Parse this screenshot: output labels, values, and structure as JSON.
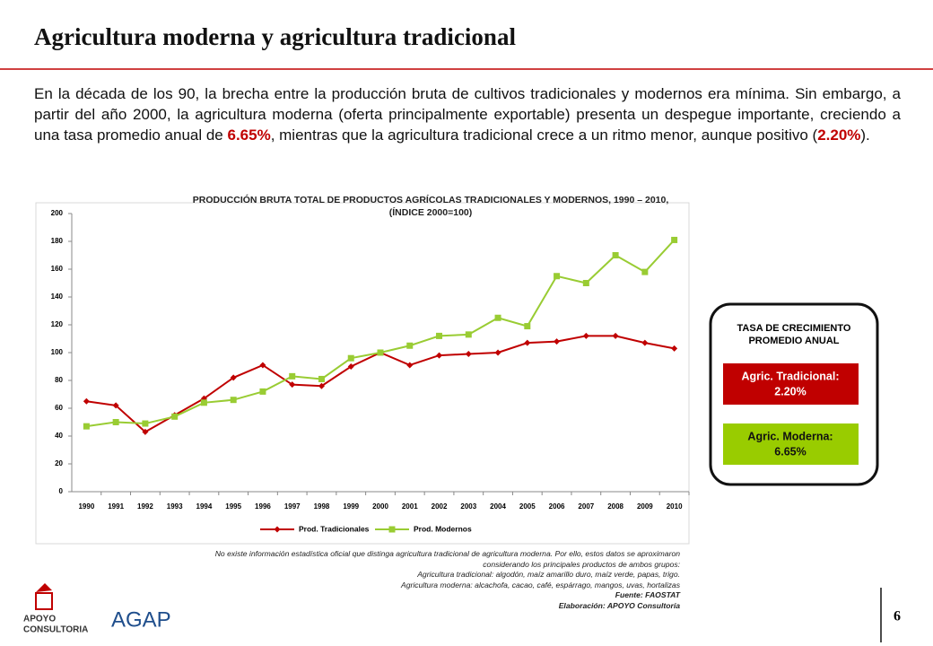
{
  "header": {
    "title": "Agricultura moderna y agricultura tradicional"
  },
  "paragraph": [
    "En la década de los 90, la brecha entre la producción bruta de cultivos tradicionales y modernos era mínima. Sin embargo, a partir del año 2000, la agricultura moderna (oferta principalmente exportable) presenta un despegue importante, creciendo a una tasa promedio anual de ",
    "6.65%",
    ", mientras que la agricultura tradicional crece a un ritmo menor, aunque positivo (",
    "2.20%",
    ")."
  ],
  "chart_data": {
    "type": "line",
    "title": "PRODUCCIÓN BRUTA TOTAL DE PRODUCTOS AGRÍCOLAS TRADICIONALES Y MODERNOS, 1990 – 2010,",
    "subtitle": "(ÍNDICE 2000=100)",
    "categories": [
      "1990",
      "1991",
      "1992",
      "1993",
      "1994",
      "1995",
      "1996",
      "1997",
      "1998",
      "1999",
      "2000",
      "2001",
      "2002",
      "2003",
      "2004",
      "2005",
      "2006",
      "2007",
      "2008",
      "2009",
      "2010"
    ],
    "series": [
      {
        "name": "Prod. Tradicionales",
        "color": "#c00000",
        "marker": "diamond",
        "values": [
          65,
          62,
          43,
          55,
          67,
          82,
          91,
          77,
          76,
          90,
          100,
          91,
          98,
          99,
          100,
          107,
          108,
          112,
          112,
          107,
          103
        ]
      },
      {
        "name": "Prod. Modernos",
        "color": "#99cc33",
        "marker": "square",
        "values": [
          47,
          50,
          49,
          54,
          64,
          66,
          72,
          83,
          81,
          96,
          100,
          105,
          112,
          113,
          125,
          119,
          155,
          150,
          170,
          158,
          181
        ]
      }
    ],
    "ylim": [
      0,
      200
    ],
    "yticks": [
      0,
      20,
      40,
      60,
      80,
      100,
      120,
      140,
      160,
      180,
      200
    ],
    "grid": false,
    "legend": "bottom"
  },
  "sidebar": {
    "title": "TASA DE CRECIMIENTO PROMEDIO ANUAL",
    "boxes": [
      {
        "label": "Agric. Tradicional:",
        "value": "2.20%",
        "color": "#c00000"
      },
      {
        "label": "Agric. Moderna:",
        "value": "6.65%",
        "color": "#99cc00"
      }
    ]
  },
  "notes": [
    "No existe información estadística oficial que distinga agricultura tradicional de agricultura moderna. Por ello, estos datos se aproximaron",
    "considerando los principales productos de ambos grupos:",
    "Agricultura tradicional: algodón, maíz amarillo duro, maíz verde, papas, trigo.",
    "Agricultura moderna: alcachofa, cacao, café, espárrago, mangos, uvas, hortalizas",
    "Fuente: FAOSTAT",
    "Elaboración: APOYO Consultoría"
  ],
  "logos": {
    "apoyo": [
      "APOYO",
      "CONSULTORIA"
    ],
    "agap": "AGAP"
  },
  "page_number": "6"
}
